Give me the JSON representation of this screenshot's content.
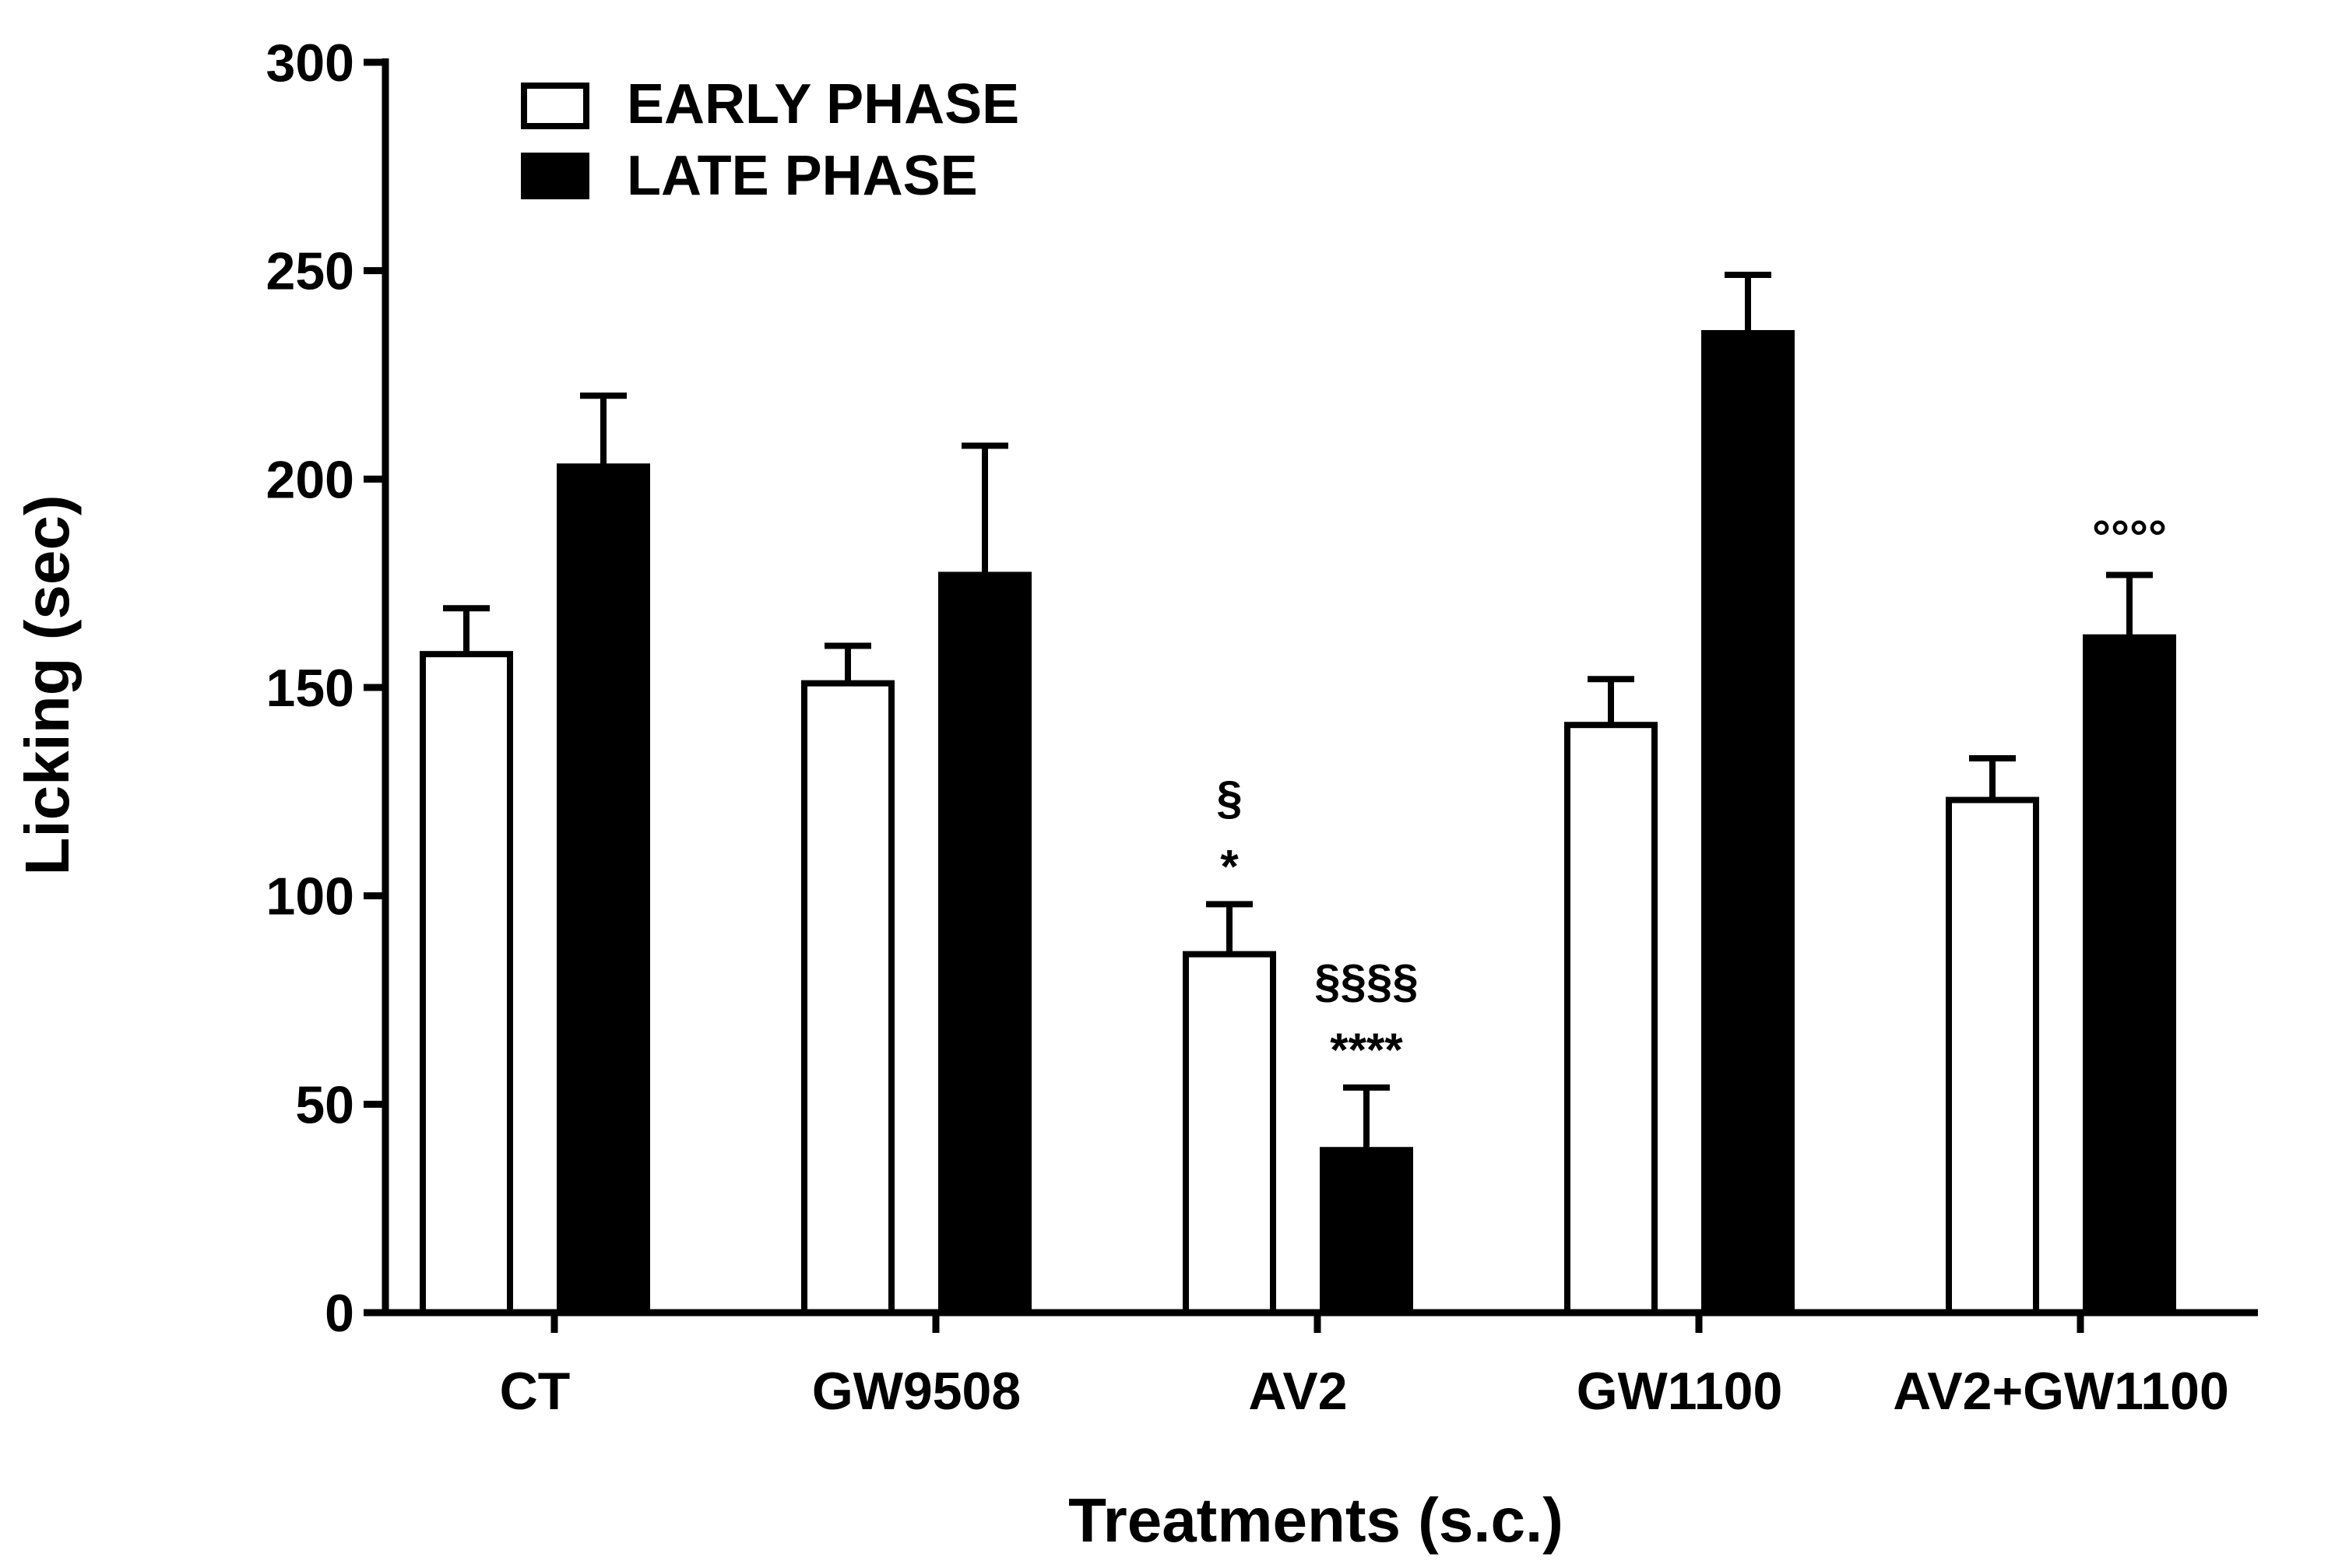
{
  "chart_data": {
    "type": "bar",
    "title": "",
    "xlabel": "Treatments (s.c.)",
    "ylabel": "Licking (sec)",
    "ylim": [
      0,
      300
    ],
    "yticks": [
      0,
      50,
      100,
      150,
      200,
      250,
      300
    ],
    "categories": [
      "CT",
      "GW9508",
      "AV2",
      "GW1100",
      "AV2+GW1100"
    ],
    "legend_position": "top-left",
    "series": [
      {
        "name": "EARLY PHASE",
        "fill": "#ffffff",
        "values": [
          158,
          151,
          86,
          141,
          123
        ],
        "errors": [
          11,
          9,
          12,
          11,
          10
        ],
        "annotations": [
          [],
          [],
          [
            "*",
            "§"
          ],
          [],
          []
        ]
      },
      {
        "name": "LATE PHASE",
        "fill": "#000000",
        "values": [
          203,
          177,
          39,
          235,
          162
        ],
        "errors": [
          17,
          31,
          15,
          14,
          15
        ],
        "annotations": [
          [],
          [],
          [
            "****",
            "§§§§"
          ],
          [],
          [
            "°°°°"
          ]
        ]
      }
    ],
    "colors": {
      "axis": "#000000",
      "early": "#ffffff",
      "late": "#000000"
    }
  }
}
